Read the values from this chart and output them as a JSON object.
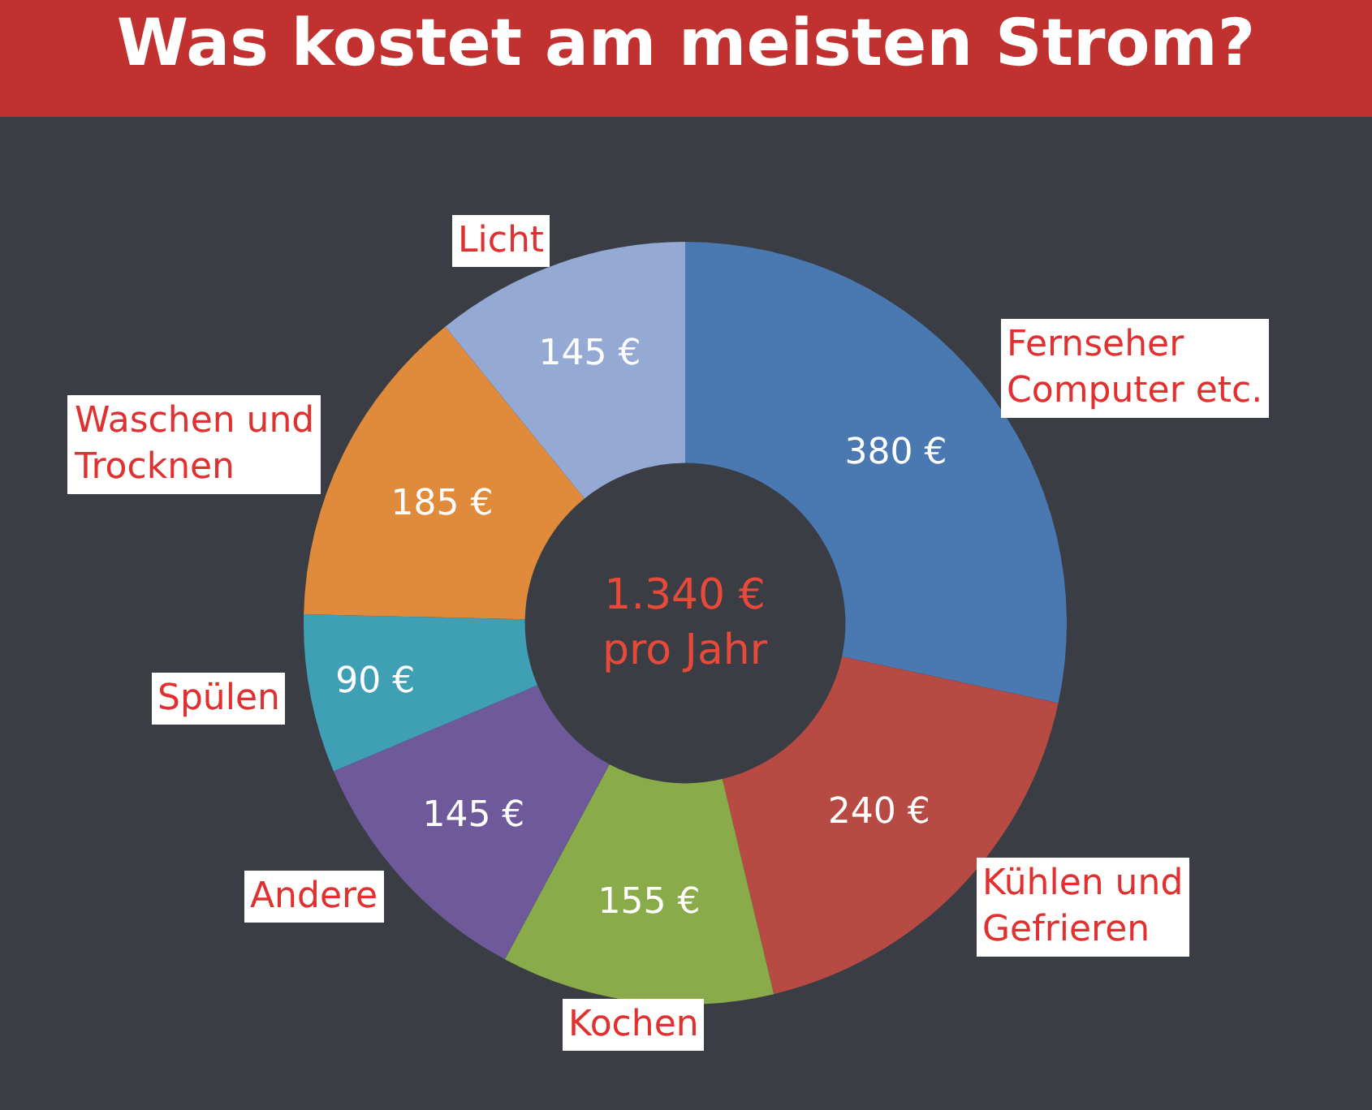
{
  "chart_data": {
    "type": "donut",
    "title": "Was kostet am meisten Strom?",
    "categories": [
      "Fernseher Computer etc.",
      "Kühlen und Gefrieren",
      "Kochen",
      "Andere",
      "Spülen",
      "Waschen und Trocknen",
      "Licht"
    ],
    "values": [
      380,
      240,
      155,
      145,
      90,
      185,
      145
    ],
    "value_labels": [
      "380 €",
      "240 €",
      "155 €",
      "145 €",
      "90 €",
      "185 €",
      "145 €"
    ],
    "colors": [
      "#4a78b0",
      "#b84a44",
      "#8aab4a",
      "#6e5a9a",
      "#3fa0b5",
      "#e08a3c",
      "#94a9d3"
    ],
    "annotations": [
      "1.340 € pro Jahr"
    ]
  }
}
